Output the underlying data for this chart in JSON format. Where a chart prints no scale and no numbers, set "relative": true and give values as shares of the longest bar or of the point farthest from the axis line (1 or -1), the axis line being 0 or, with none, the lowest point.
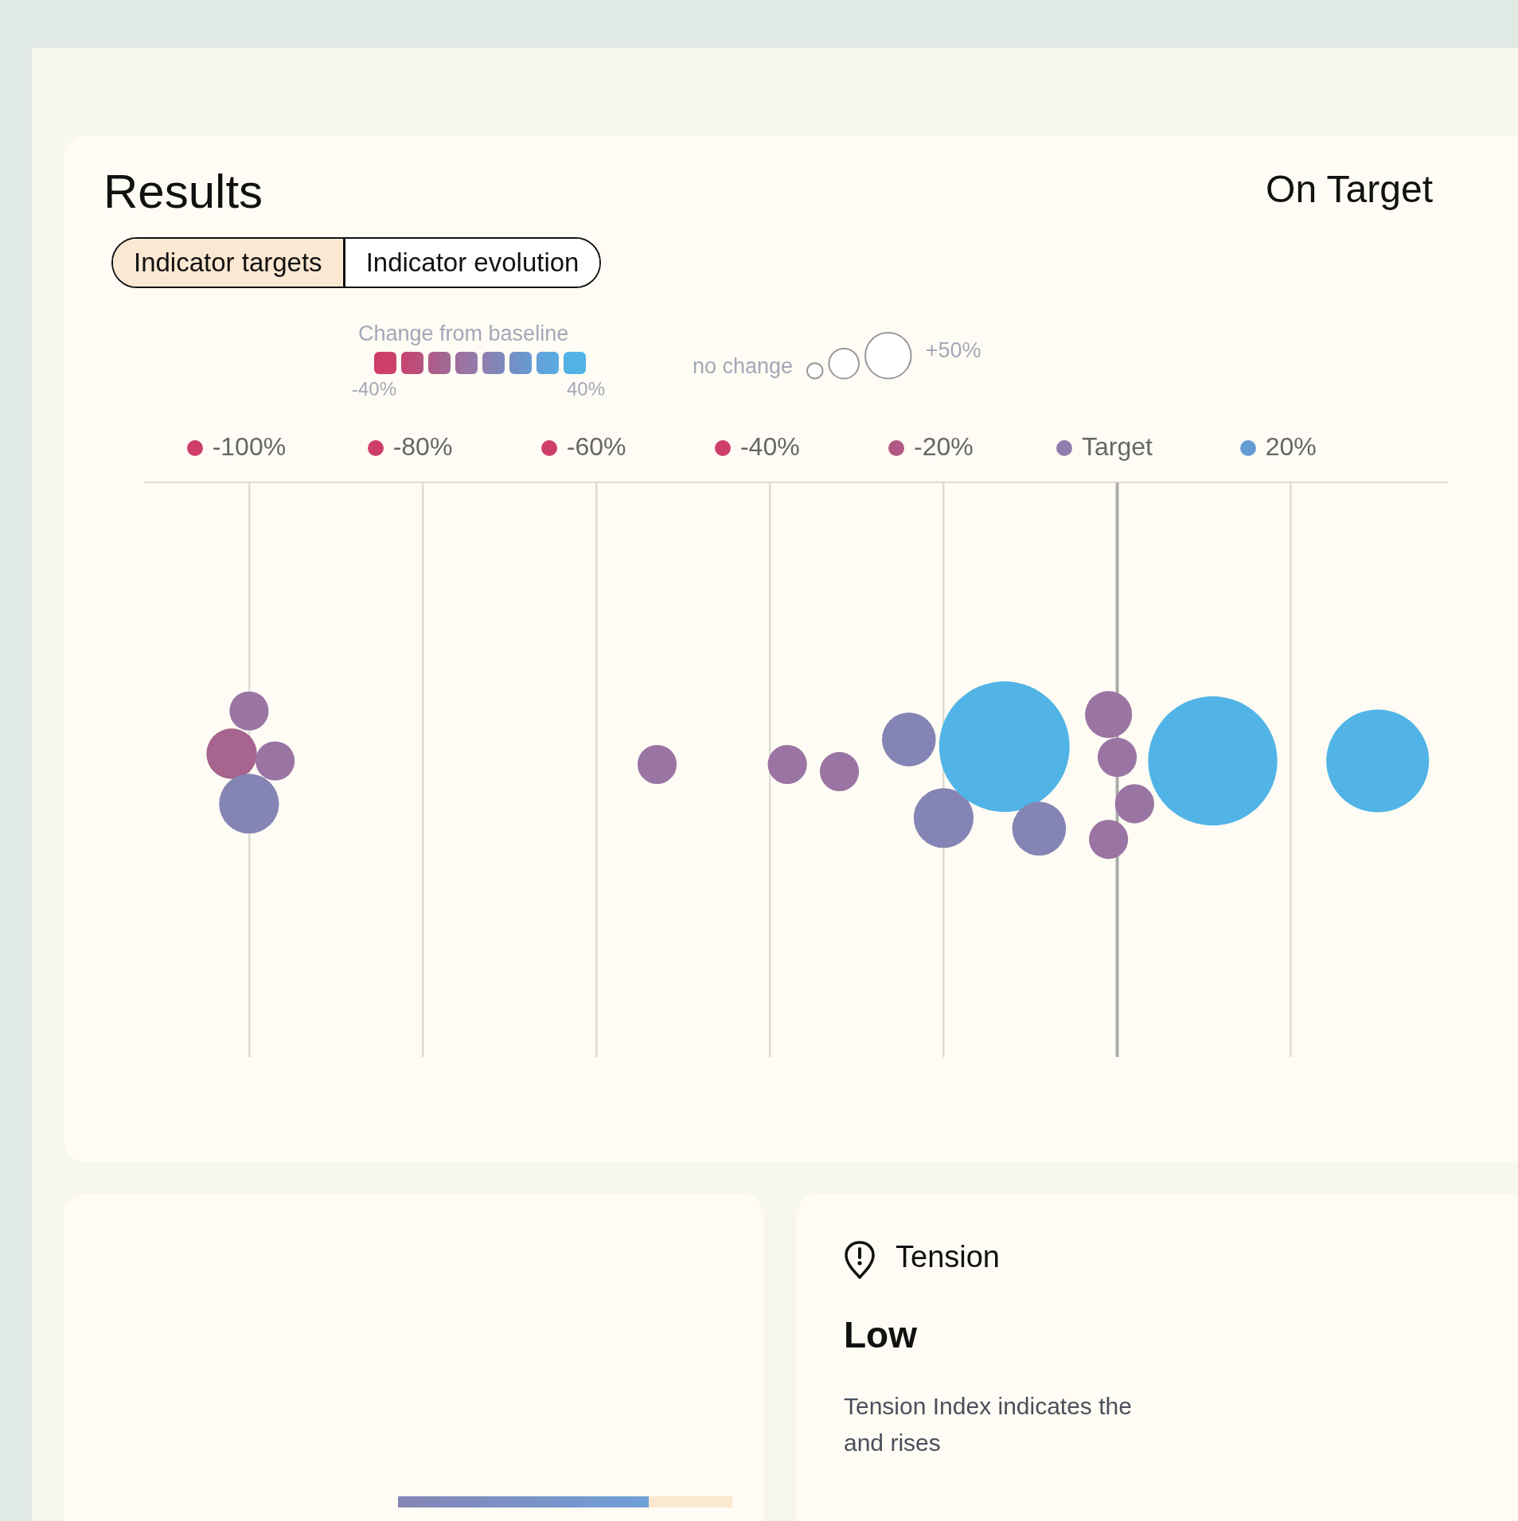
{
  "chart_data": [
    {
      "type": "bubble",
      "title": "Results",
      "annotations": [
        "Indicator targets",
        "Indicator evolution",
        "On Target",
        "no change",
        "+50%"
      ],
      "x": [
        -100,
        -102,
        -97,
        -100,
        -53,
        -38,
        -32,
        -24,
        -20,
        -13,
        -9,
        -1,
        0,
        2,
        -1,
        11,
        30
      ],
      "values": [
        -0.64,
        -0.76,
        -0.78,
        -0.9,
        -0.79,
        -0.79,
        -0.81,
        -0.72,
        -0.94,
        -0.74,
        -0.97,
        -0.65,
        -0.77,
        -0.9,
        -1,
        -0.78,
        -0.78
      ],
      "relative": true,
      "sizes": [
        0.09,
        0.15,
        0.09,
        0.21,
        0.09,
        0.09,
        0.09,
        0.17,
        0.21,
        1,
        0.17,
        0.13,
        0.09,
        0.09,
        0.09,
        0.98,
        0.62
      ],
      "cvalues": [
        -5,
        -15,
        -5,
        5,
        -5,
        -5,
        -5,
        5,
        5,
        35,
        5,
        -5,
        -5,
        -5,
        -5,
        35,
        35
      ],
      "clabel": "Change from baseline",
      "clim": [
        -40,
        40
      ],
      "cticks": [
        {
          "value": -40,
          "label": "-40%"
        },
        {
          "value": 40,
          "label": "40%"
        }
      ],
      "xlim": [
        -112,
        38
      ],
      "xticks": [
        {
          "value": -100,
          "label": "-100%"
        },
        {
          "value": -80,
          "label": "-80%"
        },
        {
          "value": -60,
          "label": "-60%"
        },
        {
          "value": -40,
          "label": "-40%"
        },
        {
          "value": -20,
          "label": "-20%"
        },
        {
          "value": 0,
          "label": "Target"
        },
        {
          "value": 20,
          "label": "20%"
        }
      ],
      "grid": "x",
      "ref_lines": [
        {
          "axis": "x",
          "value": 0,
          "color": "#aaaaaa"
        }
      ]
    },
    {
      "type": "other",
      "title": "Tension",
      "annotations": [
        "Low",
        "Tension Index indicates the",
        "and rises"
      ]
    }
  ]
}
